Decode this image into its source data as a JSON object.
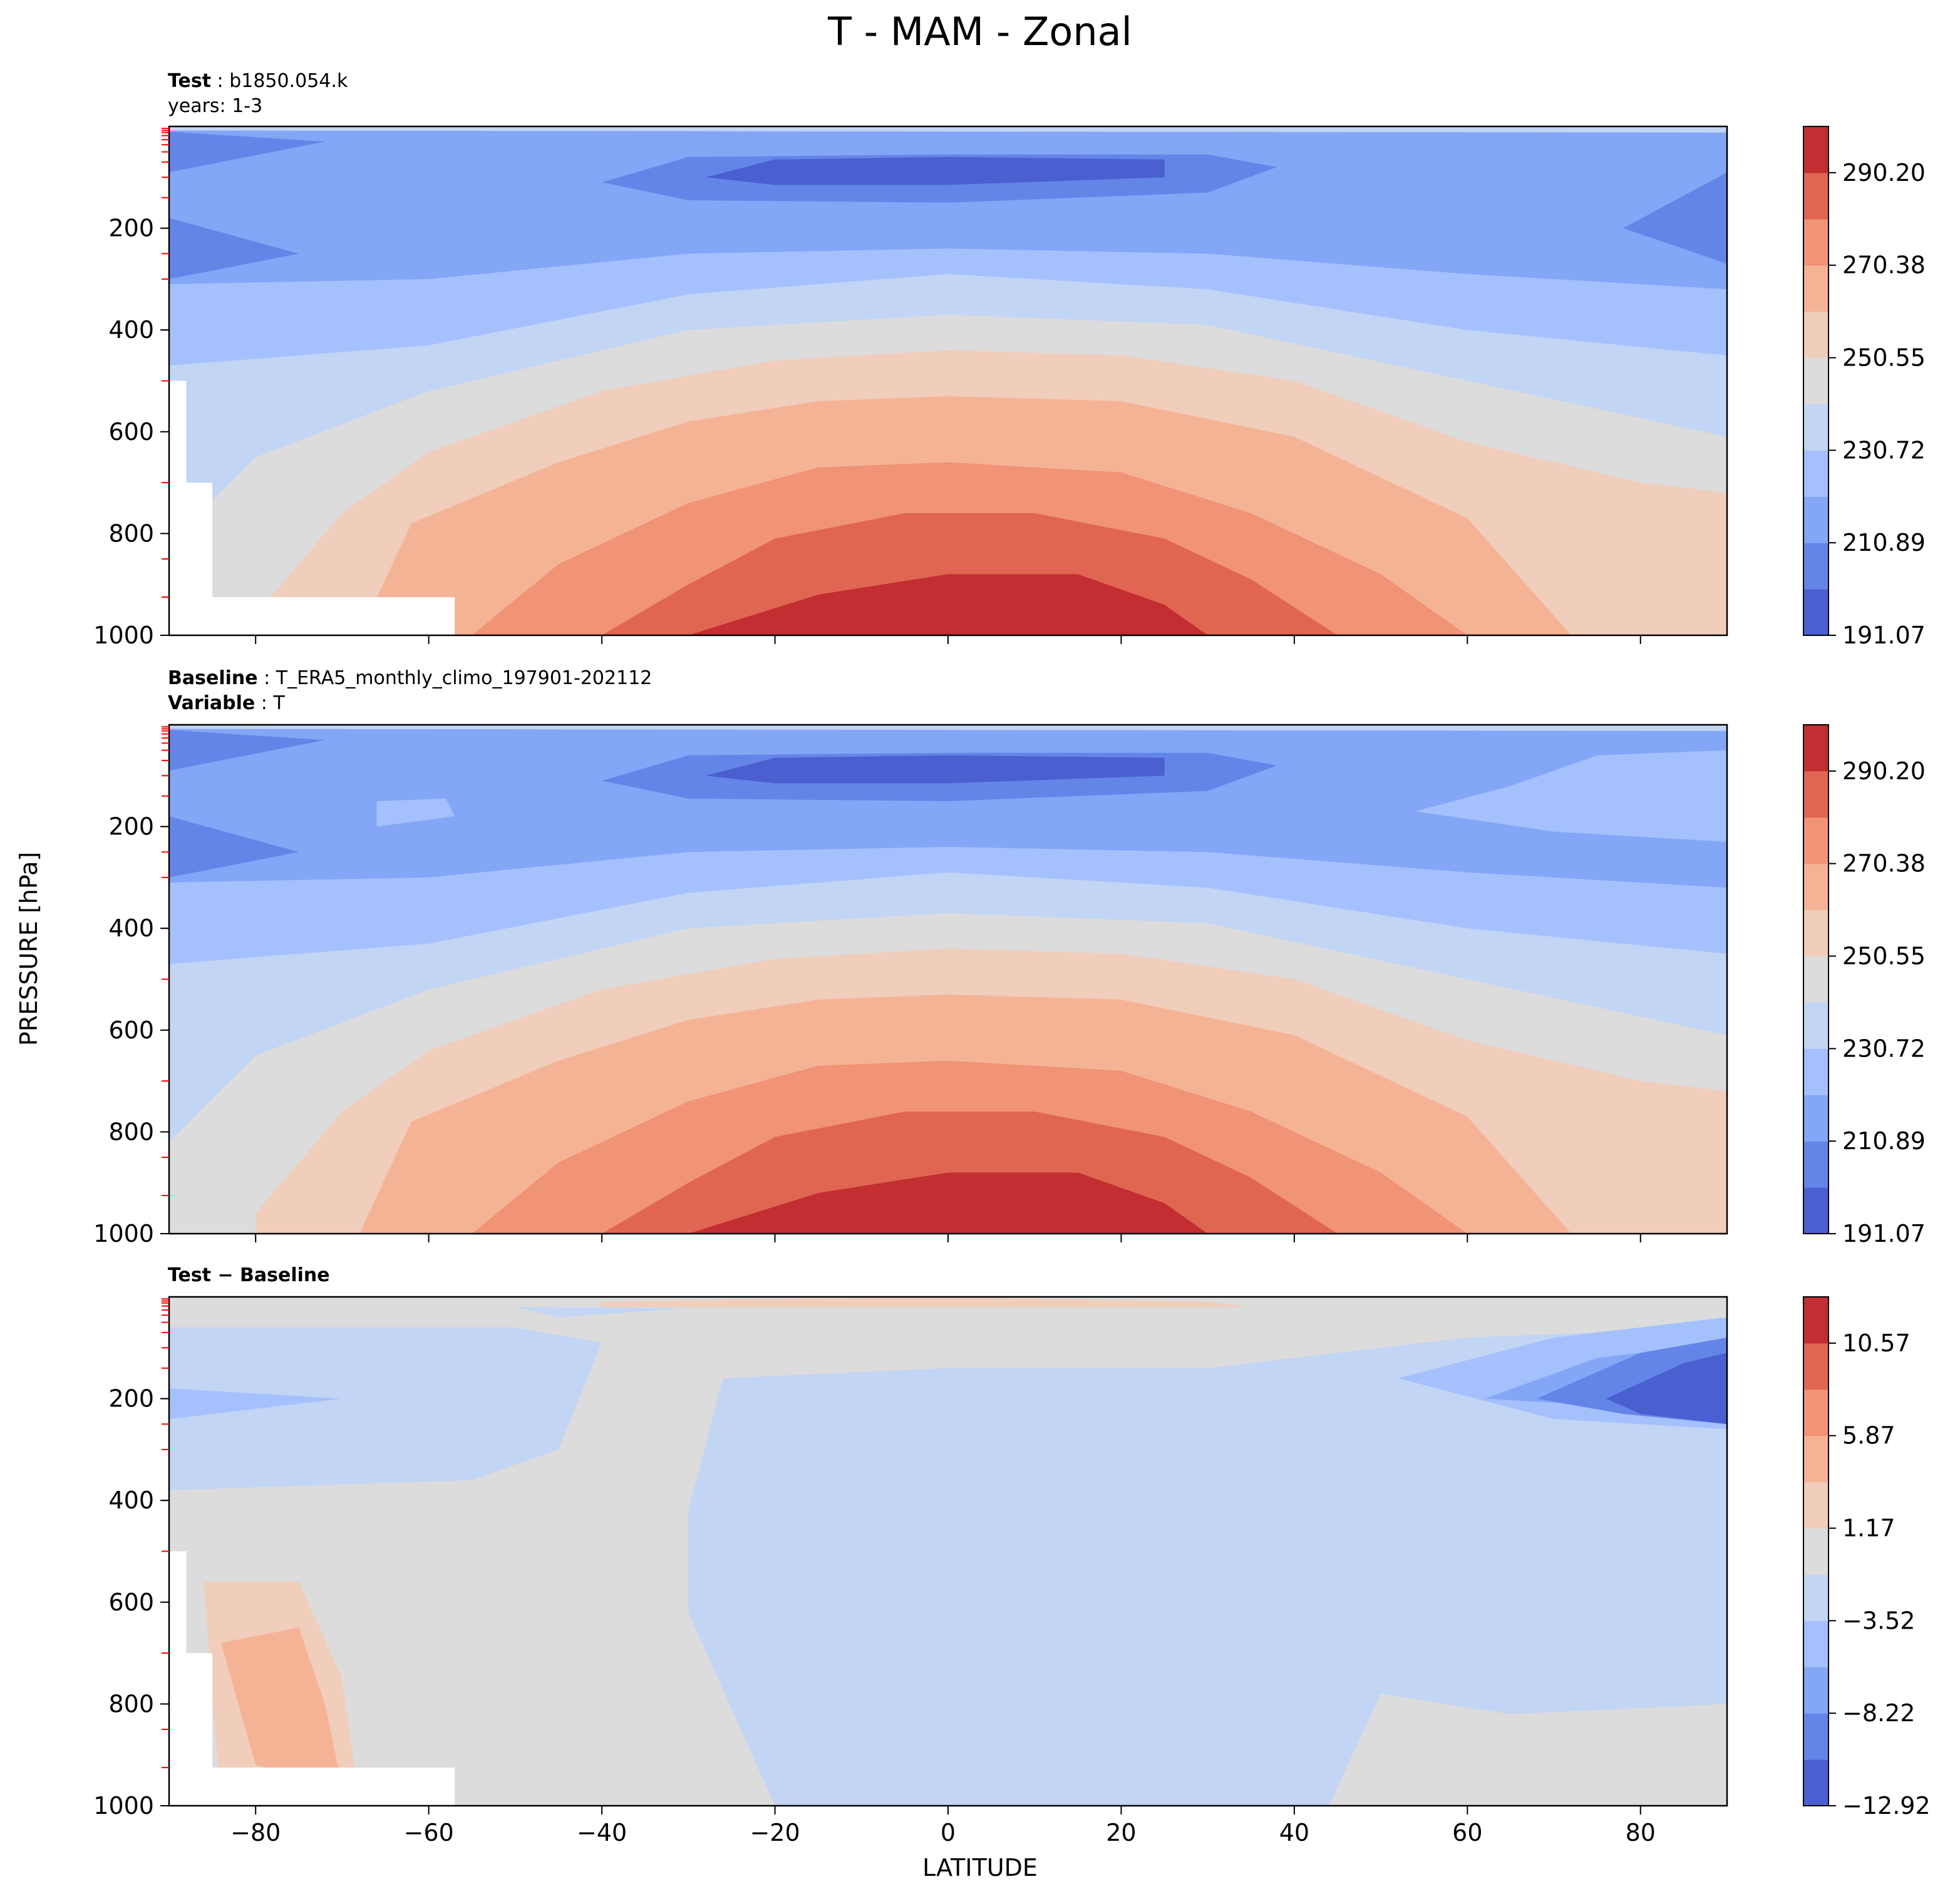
{
  "figure": {
    "title": "T - MAM - Zonal",
    "ylabel": "PRESSURE [hPa]",
    "xlabel": "LATITUDE"
  },
  "panels": [
    {
      "annotation": [
        {
          "label": "Test",
          "value": "b1850.054.k"
        },
        {
          "label": "",
          "value": "years: 1-3"
        }
      ]
    },
    {
      "annotation": [
        {
          "label": "Baseline",
          "value": "T_ERA5_monthly_climo_197901-202112"
        },
        {
          "label": "Variable",
          "value": "T"
        }
      ]
    },
    {
      "annotation": [
        {
          "label": "Test − Baseline",
          "value": ""
        }
      ]
    }
  ],
  "chart_data": [
    {
      "type": "contourf",
      "panel": "Test",
      "x_axis": {
        "range": [
          -90,
          90
        ],
        "ticks": [
          -80,
          -60,
          -40,
          -20,
          0,
          20,
          40,
          60,
          80
        ],
        "show_tick_labels": false
      },
      "y_axis": {
        "range": [
          1000,
          0
        ],
        "ticks": [
          200,
          400,
          600,
          800,
          1000
        ],
        "inverted": true
      },
      "colormap": "coolwarm",
      "levels": [
        191.07,
        201.0,
        210.89,
        220.8,
        230.72,
        240.6,
        250.55,
        260.5,
        270.38,
        280.3,
        290.2,
        300.1
      ],
      "colorbar": {
        "ticks": [
          "290.20",
          "270.38",
          "250.55",
          "230.72",
          "210.89",
          "191.07"
        ]
      },
      "masked_surface": true
    },
    {
      "type": "contourf",
      "panel": "Baseline",
      "x_axis": {
        "range": [
          -90,
          90
        ],
        "ticks": [
          -80,
          -60,
          -40,
          -20,
          0,
          20,
          40,
          60,
          80
        ],
        "show_tick_labels": false
      },
      "y_axis": {
        "range": [
          1000,
          0
        ],
        "ticks": [
          200,
          400,
          600,
          800,
          1000
        ],
        "inverted": true
      },
      "colormap": "coolwarm",
      "levels": [
        191.07,
        201.0,
        210.89,
        220.8,
        230.72,
        240.6,
        250.55,
        260.5,
        270.38,
        280.3,
        290.2,
        300.1
      ],
      "colorbar": {
        "ticks": [
          "290.20",
          "270.38",
          "250.55",
          "230.72",
          "210.89",
          "191.07"
        ]
      }
    },
    {
      "type": "contourf",
      "panel": "Test - Baseline",
      "x_axis": {
        "range": [
          -90,
          90
        ],
        "ticks": [
          -80,
          -60,
          -40,
          -20,
          0,
          20,
          40,
          60,
          80
        ],
        "tick_labels": [
          "−80",
          "−60",
          "−40",
          "−20",
          "0",
          "20",
          "40",
          "60",
          "80"
        ]
      },
      "y_axis": {
        "range": [
          1000,
          0
        ],
        "ticks": [
          200,
          400,
          600,
          800,
          1000
        ],
        "inverted": true
      },
      "colormap": "coolwarm",
      "levels": [
        -12.92,
        -10.57,
        -8.22,
        -5.87,
        -3.52,
        -1.17,
        1.17,
        3.52,
        5.87,
        8.22,
        10.57,
        12.92
      ],
      "colorbar": {
        "ticks": [
          "10.57",
          "5.87",
          "1.17",
          "−3.52",
          "−8.22",
          "−12.92"
        ]
      },
      "masked_surface": true
    }
  ]
}
